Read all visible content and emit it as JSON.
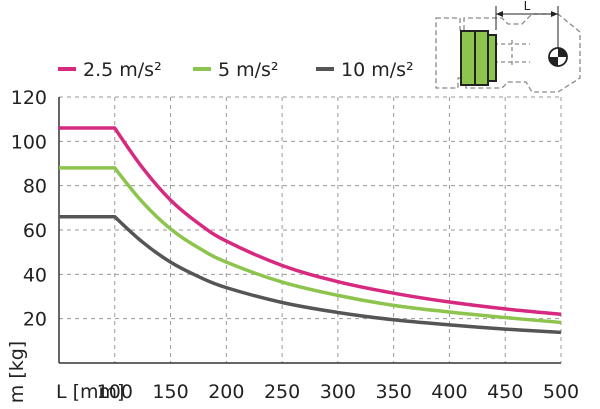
{
  "chart_data": {
    "type": "line",
    "xlabel": "L [mm]",
    "ylabel": "m [kg]",
    "xlim": [
      50,
      500
    ],
    "ylim": [
      0,
      120
    ],
    "xticks": [
      100,
      150,
      200,
      250,
      300,
      350,
      400,
      450,
      500
    ],
    "yticks": [
      20,
      40,
      60,
      80,
      100,
      120
    ],
    "grid": true,
    "legend_position": "top-left",
    "inset": "gripper-diagram",
    "inset_label": "L",
    "series": [
      {
        "name": "2.5 m/s²",
        "color": "#d6297f",
        "x": [
          50,
          100,
          125,
          150,
          175,
          200,
          250,
          300,
          350,
          400,
          450,
          500
        ],
        "y": [
          106,
          106,
          88,
          73.5,
          63,
          55,
          44,
          36.7,
          31.5,
          27.5,
          24.4,
          22
        ]
      },
      {
        "name": "5 m/s²",
        "color": "#8cc44d",
        "x": [
          50,
          100,
          125,
          150,
          175,
          200,
          250,
          300,
          350,
          400,
          450,
          500
        ],
        "y": [
          88,
          88,
          72.5,
          60.5,
          52,
          45.5,
          36.5,
          30.5,
          26,
          23,
          20.5,
          18.3
        ]
      },
      {
        "name": "10 m/s²",
        "color": "#555555",
        "x": [
          50,
          100,
          125,
          150,
          175,
          200,
          250,
          300,
          350,
          400,
          450,
          500
        ],
        "y": [
          66,
          66,
          54.5,
          45.5,
          39,
          34,
          27.3,
          22.8,
          19.5,
          17.2,
          15.3,
          13.8
        ]
      }
    ]
  }
}
